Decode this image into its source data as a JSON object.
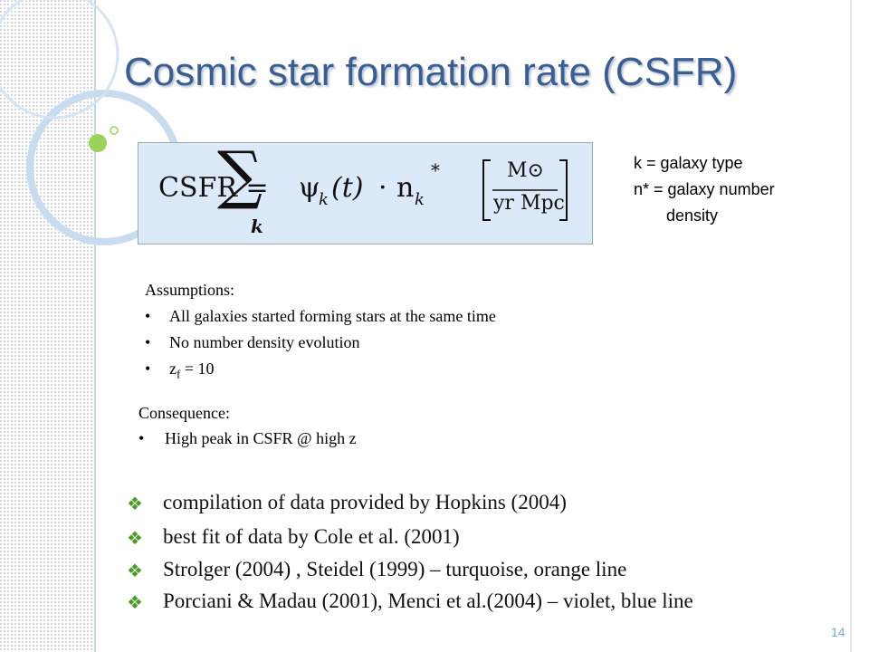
{
  "title": "Cosmic star formation rate (CSFR)",
  "formula": {
    "lhs": "CSFR =",
    "sum": "∑",
    "sum_index": "k",
    "psi": "ψ",
    "psi_index": "k",
    "arg": "(t)",
    "dot": "·",
    "n": "n",
    "n_index": "k",
    "star": "*",
    "unit_num": "M⊙",
    "unit_den": "yr Mpc"
  },
  "note": [
    "k = galaxy type",
    "n* = galaxy number",
    "density"
  ],
  "assumptions": {
    "heading": "Assumptions:",
    "items": [
      "All galaxies started forming stars at the same time",
      "No number density evolution"
    ],
    "z_item": {
      "z": "z",
      "sub": "f",
      "rest": "= 10"
    }
  },
  "consequence": {
    "heading": "Consequence:",
    "items": [
      "High peak in CSFR @ high z"
    ]
  },
  "bullets": [
    "compilation of data provided by Hopkins (2004)",
    "best fit of data by Cole et al. (2001)",
    "Strolger (2004) , Steidel (1999) – turquoise, orange line",
    "Porciani & Madau (2001), Menci et al.(2004) – violet, blue line"
  ],
  "page_number": "14"
}
